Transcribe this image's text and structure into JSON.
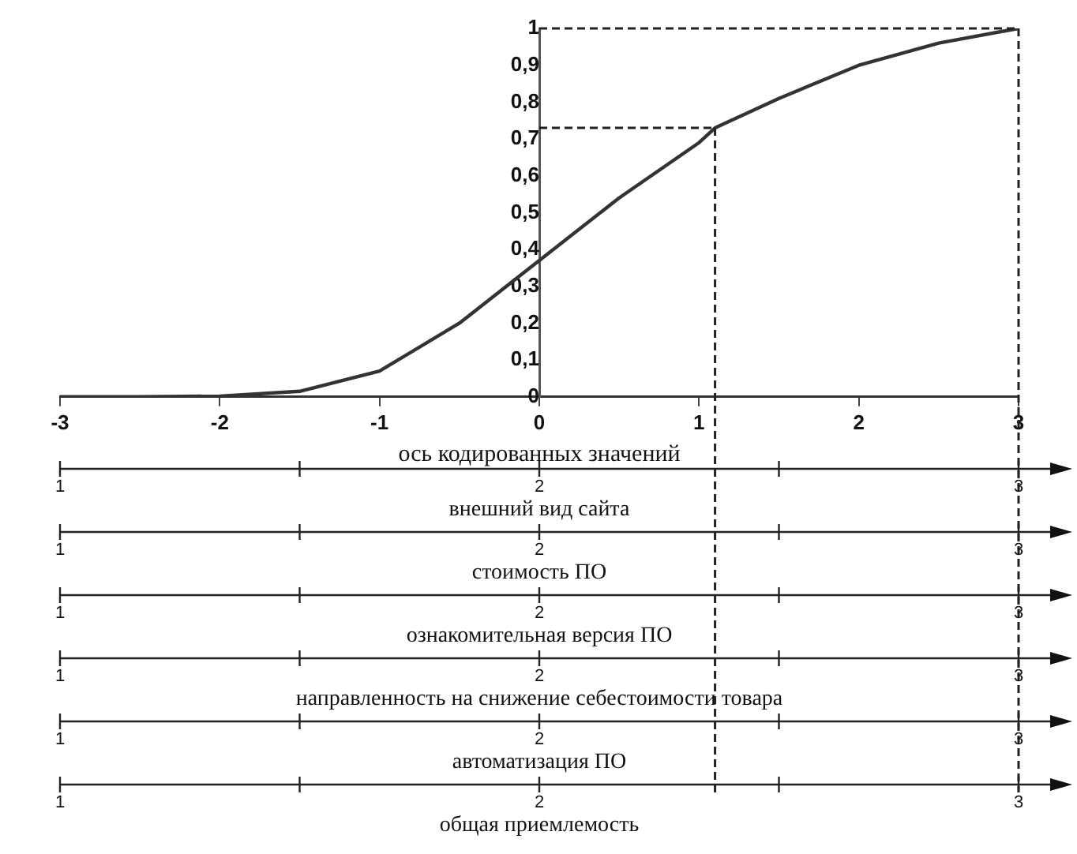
{
  "chart_data": [
    {
      "type": "line",
      "xlabel": "ось кодированных значений",
      "x": [
        -3,
        -2.5,
        -2,
        -1.5,
        -1,
        -0.5,
        0,
        0.5,
        1,
        1.1,
        1.5,
        2,
        2.5,
        3
      ],
      "values": [
        0,
        0,
        0.002,
        0.015,
        0.07,
        0.2,
        0.37,
        0.54,
        0.69,
        0.73,
        0.81,
        0.9,
        0.96,
        1
      ],
      "color": "#333333",
      "marker": "none",
      "line_style": "solid",
      "xlim": [
        -3,
        3
      ],
      "xticks": [
        -3,
        -2,
        -1,
        0,
        1,
        2,
        3
      ],
      "ylim": [
        0,
        1
      ],
      "yticks": [
        0,
        {
          "value": 0.1,
          "label": "0,1"
        },
        {
          "value": 0.2,
          "label": "0,2"
        },
        {
          "value": 0.3,
          "label": "0,3"
        },
        {
          "value": 0.4,
          "label": "0,4"
        },
        {
          "value": 0.5,
          "label": "0,5"
        },
        {
          "value": 0.6,
          "label": "0,6"
        },
        {
          "value": 0.7,
          "label": "0,7"
        },
        {
          "value": 0.8,
          "label": "0,8"
        },
        {
          "value": 0.9,
          "label": "0,9"
        },
        1
      ],
      "ref_lines": [
        {
          "axis": "y",
          "value": 1,
          "line_style": "dashed"
        },
        {
          "axis": "y",
          "value": 0.73,
          "line_style": "dashed"
        },
        {
          "axis": "x",
          "value": 3,
          "line_style": "dashed"
        },
        {
          "axis": "x",
          "value": 1.1,
          "line_style": "dashed"
        }
      ],
      "grid": false,
      "legend": false
    },
    {
      "type": "other",
      "xlabel": "внешний вид сайта",
      "annotations": [
        "1",
        "2",
        "3"
      ]
    },
    {
      "type": "other",
      "xlabel": "стоимость ПО",
      "annotations": [
        "1",
        "2",
        "3"
      ]
    },
    {
      "type": "other",
      "xlabel": "ознакомительная версия ПО",
      "annotations": [
        "1",
        "2",
        "3"
      ]
    },
    {
      "type": "other",
      "xlabel": "направленность на снижение себестоимости товара",
      "annotations": [
        "1",
        "2",
        "3"
      ]
    },
    {
      "type": "other",
      "xlabel": "автоматизация ПО",
      "annotations": [
        "1",
        "2",
        "3"
      ]
    },
    {
      "type": "other",
      "xlabel": "общая приемлемость",
      "annotations": [
        "1",
        "2",
        "3"
      ]
    }
  ]
}
